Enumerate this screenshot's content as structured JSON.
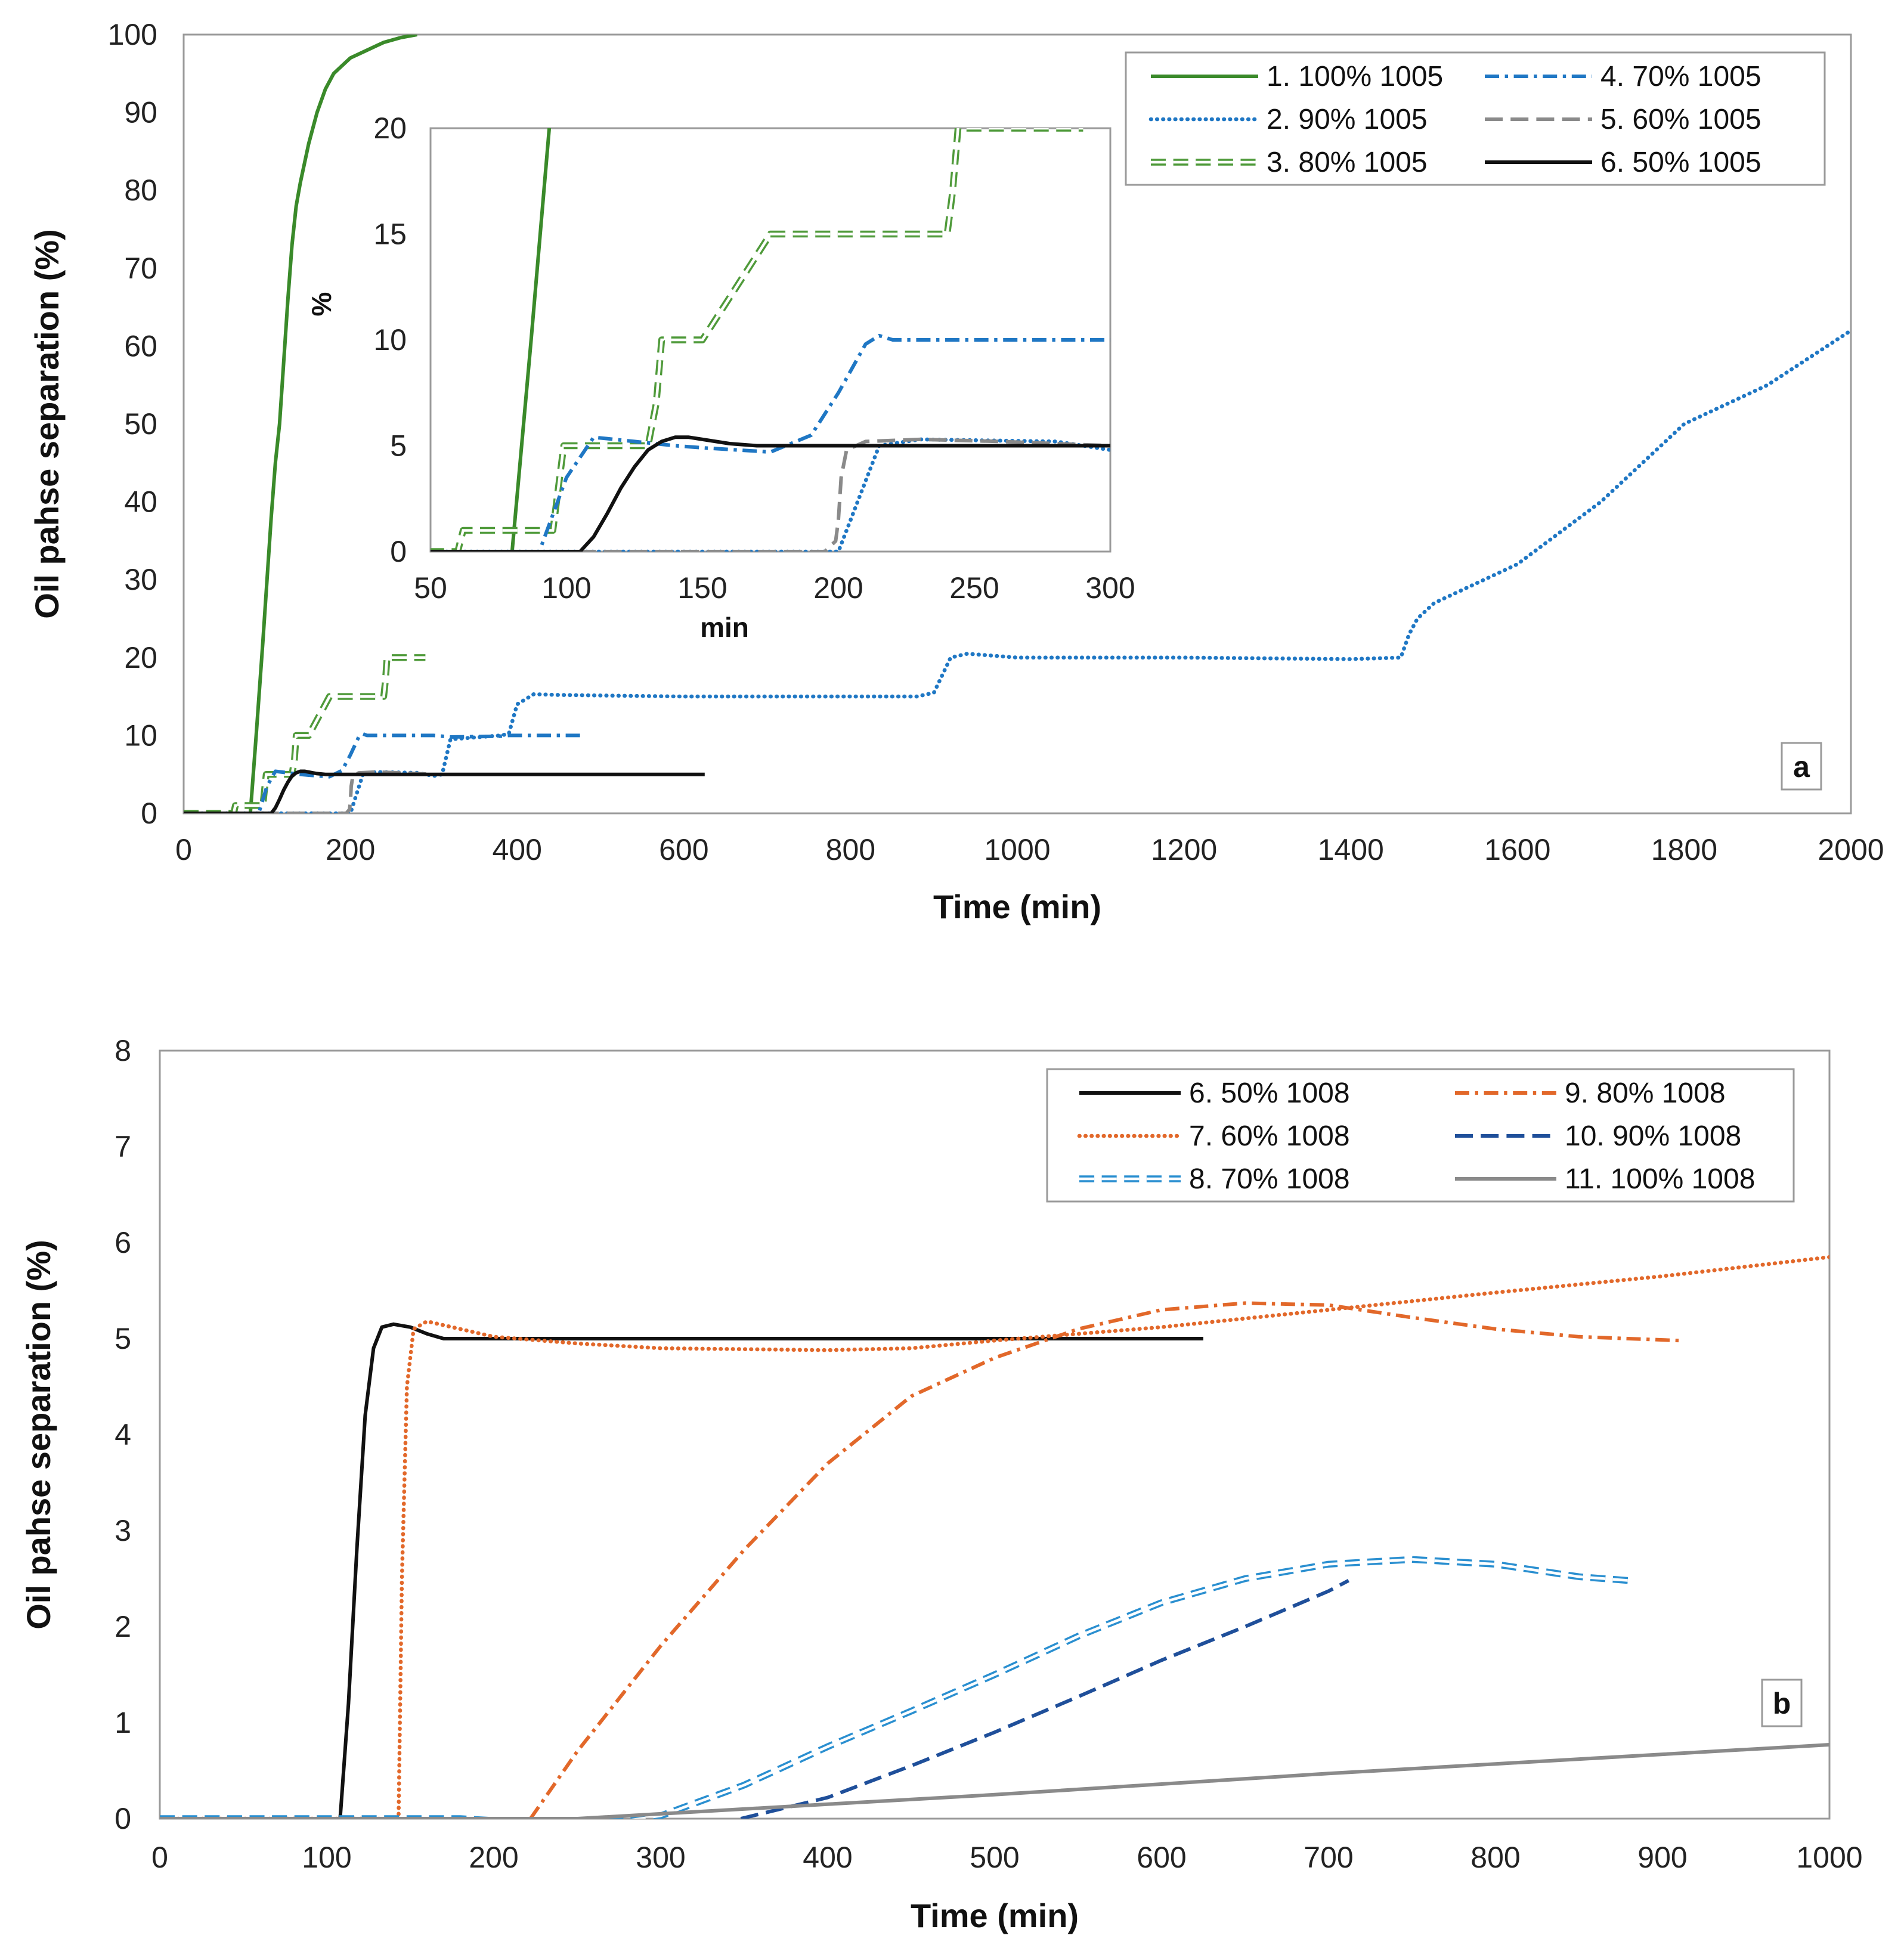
{
  "chart_data": [
    {
      "panel": "a",
      "type": "line",
      "title": "",
      "xlabel": "Time (min)",
      "ylabel": "Oil pahse separation (%)",
      "xlim": [
        0,
        2000
      ],
      "ylim": [
        0,
        100
      ],
      "xticks": [
        0,
        200,
        400,
        600,
        800,
        1000,
        1200,
        1400,
        1600,
        1800,
        2000
      ],
      "yticks": [
        0,
        10,
        20,
        30,
        40,
        50,
        60,
        70,
        80,
        90,
        100
      ],
      "legend_position": "top-right",
      "series": [
        {
          "name": "1. 100% 1005",
          "color": "#3a8a2a",
          "style": "solid",
          "x": [
            0,
            80,
            87,
            95,
            100,
            105,
            110,
            115,
            120,
            125,
            130,
            135,
            140,
            150,
            160,
            170,
            180,
            190,
            200,
            220,
            240,
            260,
            280
          ],
          "y": [
            0,
            0,
            10,
            22,
            30,
            38,
            45,
            50,
            58,
            66,
            73,
            78,
            81,
            86,
            90,
            93,
            95,
            96,
            97,
            98,
            99,
            99.6,
            100
          ]
        },
        {
          "name": "2. 90% 1005",
          "color": "#1f77c4",
          "style": "dotted",
          "x": [
            0,
            190,
            200,
            215,
            230,
            280,
            300,
            310,
            320,
            380,
            390,
            400,
            420,
            450,
            600,
            800,
            880,
            900,
            920,
            940,
            1000,
            1200,
            1400,
            1460,
            1470,
            1480,
            1500,
            1600,
            1700,
            1800,
            1900,
            2000
          ],
          "y": [
            0,
            0,
            0,
            5,
            5.3,
            5.2,
            4.8,
            5,
            9.5,
            10,
            10.2,
            14,
            15.3,
            15.2,
            15,
            15,
            15,
            15.5,
            20,
            20.5,
            20,
            20,
            19.8,
            20,
            23,
            25,
            27,
            32,
            40,
            50,
            55,
            62
          ]
        },
        {
          "name": "3. 80% 1005",
          "color": "#4f9a3a",
          "style": "dashed-open",
          "x": [
            0,
            60,
            62,
            95,
            97,
            99,
            101,
            130,
            133,
            135,
            137,
            150,
            175,
            240,
            242,
            244,
            290
          ],
          "y": [
            0,
            0,
            1,
            1,
            3,
            5,
            5,
            5,
            7,
            10,
            10,
            10,
            15,
            15,
            17,
            20,
            20
          ]
        },
        {
          "name": "4. 70% 1005",
          "color": "#1f77c4",
          "style": "dashdot",
          "x": [
            0,
            90,
            100,
            110,
            125,
            140,
            150,
            175,
            190,
            200,
            210,
            215,
            220,
            260,
            300,
            320,
            380,
            390,
            400,
            480
          ],
          "y": [
            0,
            0,
            3.5,
            5.4,
            5.2,
            5,
            4.9,
            4.7,
            5.5,
            7.5,
            9.8,
            10.2,
            10,
            10,
            10,
            9.8,
            9.9,
            10,
            10,
            10
          ]
        },
        {
          "name": "5. 60% 1005",
          "color": "#8a8a8a",
          "style": "longdash",
          "x": [
            0,
            195,
            199,
            200,
            201,
            203,
            210,
            230,
            260,
            300
          ],
          "y": [
            0,
            0,
            0.5,
            1.5,
            3.5,
            4.8,
            5.2,
            5.3,
            5.2,
            5
          ]
        },
        {
          "name": "6. 50% 1005",
          "color": "#111111",
          "style": "solid",
          "x": [
            0,
            105,
            110,
            115,
            120,
            125,
            130,
            135,
            140,
            145,
            150,
            160,
            170,
            300,
            625
          ],
          "y": [
            0,
            0,
            0.7,
            1.8,
            3,
            4,
            4.8,
            5.2,
            5.4,
            5.4,
            5.3,
            5.1,
            5,
            5,
            5
          ]
        }
      ],
      "inset": {
        "xlabel": "min",
        "ylabel": "%",
        "xlim": [
          50,
          300
        ],
        "ylim": [
          0,
          20
        ],
        "xticks": [
          50,
          100,
          150,
          200,
          250,
          300
        ],
        "yticks": [
          0,
          5,
          10,
          15,
          20
        ]
      },
      "panel_label": "a"
    },
    {
      "panel": "b",
      "type": "line",
      "title": "",
      "xlabel": "Time (min)",
      "ylabel": "Oil pahse separation (%)",
      "xlim": [
        0,
        1000
      ],
      "ylim": [
        0,
        8
      ],
      "xticks": [
        0,
        100,
        200,
        300,
        400,
        500,
        600,
        700,
        800,
        900,
        1000
      ],
      "yticks": [
        0,
        1,
        2,
        3,
        4,
        5,
        6,
        7,
        8
      ],
      "legend_position": "top-right",
      "series": [
        {
          "name": "6. 50% 1008",
          "color": "#111111",
          "style": "solid",
          "x": [
            0,
            108,
            113,
            118,
            123,
            128,
            133,
            140,
            150,
            160,
            170,
            625
          ],
          "y": [
            0,
            0,
            1.2,
            2.8,
            4.2,
            4.9,
            5.12,
            5.15,
            5.12,
            5.05,
            5,
            5
          ]
        },
        {
          "name": "7. 60% 1008",
          "color": "#e2682a",
          "style": "dotted",
          "x": [
            0,
            143,
            145,
            148,
            152,
            160,
            180,
            200,
            250,
            300,
            400,
            450,
            500,
            600,
            700,
            800,
            900,
            1000
          ],
          "y": [
            0,
            0,
            2.5,
            4.5,
            5.1,
            5.18,
            5.1,
            5.02,
            4.95,
            4.9,
            4.88,
            4.9,
            4.98,
            5.12,
            5.3,
            5.48,
            5.65,
            5.85
          ]
        },
        {
          "name": "8. 70% 1008",
          "color": "#2a8fd0",
          "style": "dashed-open",
          "x": [
            0,
            180,
            200,
            280,
            300,
            350,
            400,
            450,
            500,
            550,
            600,
            650,
            700,
            750,
            800,
            850,
            880
          ],
          "y": [
            0,
            0,
            -0.02,
            -0.02,
            0.03,
            0.35,
            0.75,
            1.12,
            1.5,
            1.9,
            2.25,
            2.5,
            2.65,
            2.7,
            2.65,
            2.52,
            2.48
          ]
        },
        {
          "name": "9. 80% 1008",
          "color": "#e2682a",
          "style": "dashdot",
          "x": [
            222,
            250,
            300,
            350,
            400,
            450,
            500,
            550,
            600,
            650,
            700,
            750,
            800,
            850,
            910
          ],
          "y": [
            0,
            0.7,
            1.8,
            2.8,
            3.7,
            4.4,
            4.8,
            5.1,
            5.3,
            5.37,
            5.35,
            5.22,
            5.1,
            5.02,
            4.98
          ]
        },
        {
          "name": "10. 90% 1008",
          "color": "#1f4f9a",
          "style": "longdash",
          "x": [
            348,
            400,
            450,
            500,
            550,
            600,
            650,
            700,
            712
          ],
          "y": [
            0,
            0.22,
            0.55,
            0.9,
            1.27,
            1.65,
            2.0,
            2.37,
            2.48
          ]
        },
        {
          "name": "11. 100% 1008",
          "color": "#8a8a8a",
          "style": "solid",
          "x": [
            0,
            250,
            300,
            400,
            500,
            600,
            700,
            800,
            900,
            1000
          ],
          "y": [
            0,
            0,
            0.05,
            0.15,
            0.25,
            0.36,
            0.47,
            0.57,
            0.67,
            0.77
          ]
        }
      ],
      "panel_label": "b"
    }
  ]
}
